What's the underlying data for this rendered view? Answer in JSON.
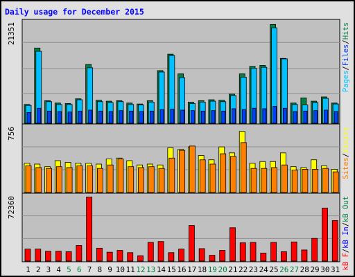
{
  "title": "Daily usage for December 2015",
  "colors": {
    "frame_bg": "#e0e0e0",
    "plot_bg": "#c0c0c0",
    "title": "#0000ff",
    "hits": "#008040",
    "files": "#00c0ff",
    "pages": "#0040ff",
    "visits": "#ffff00",
    "sites": "#ff8000",
    "kb_f": "#ff0000",
    "kb_in": "#0000ff",
    "kb_out": "#008040",
    "weekend_tick": "#008040",
    "weekday_tick": "#000000",
    "grid": "#909090"
  },
  "chart_data": [
    {
      "type": "bar",
      "panel": "hits-files-pages",
      "y_max_label": "21351",
      "ylim": [
        0,
        21351
      ],
      "legend": [
        {
          "text": "Pages",
          "color": "#00c0ff"
        },
        {
          "text": "/",
          "color": "#000000"
        },
        {
          "text": "Files",
          "color": "#0040ff"
        },
        {
          "text": "/",
          "color": "#000000"
        },
        {
          "text": "Hits",
          "color": "#008040"
        }
      ],
      "series": [
        {
          "name": "Hits",
          "values": [
            4000,
            16000,
            4800,
            4300,
            4200,
            5200,
            12500,
            4900,
            4700,
            4800,
            4300,
            4100,
            4800,
            11200,
            14700,
            10500,
            4500,
            4800,
            5000,
            4900,
            6200,
            10500,
            12100,
            12300,
            21000,
            13800,
            4300,
            5400,
            4700,
            5600,
            4300
          ]
        },
        {
          "name": "Files",
          "values": [
            3800,
            15300,
            4600,
            4000,
            4000,
            5000,
            11800,
            4600,
            4400,
            4600,
            4000,
            3900,
            4500,
            10900,
            14400,
            9700,
            4200,
            4500,
            4700,
            4600,
            5900,
            9800,
            11700,
            11900,
            20300,
            13700,
            4000,
            3900,
            4400,
            5300,
            4100
          ]
        },
        {
          "name": "Pages",
          "values": [
            2300,
            3200,
            2600,
            2500,
            2400,
            2600,
            2800,
            2600,
            2500,
            2700,
            2600,
            2500,
            2600,
            2900,
            3000,
            2800,
            2700,
            2600,
            2700,
            2600,
            3100,
            2900,
            3200,
            3100,
            3600,
            3200,
            2500,
            2600,
            2700,
            2800,
            2500
          ]
        }
      ]
    },
    {
      "type": "bar",
      "panel": "visits-sites",
      "y_max_label": "756",
      "ylim": [
        0,
        756
      ],
      "legend": [
        {
          "text": "Sites",
          "color": "#ff8000"
        },
        {
          "text": "/",
          "color": "#000000"
        },
        {
          "text": "Visits",
          "color": "#ffff00"
        }
      ],
      "series": [
        {
          "name": "Visits",
          "values": [
            340,
            330,
            300,
            370,
            350,
            340,
            340,
            330,
            390,
            400,
            370,
            320,
            330,
            320,
            520,
            500,
            530,
            430,
            380,
            530,
            460,
            710,
            340,
            360,
            360,
            460,
            300,
            290,
            380,
            310,
            270
          ]
        },
        {
          "name": "Sites",
          "values": [
            310,
            290,
            280,
            300,
            290,
            310,
            310,
            280,
            320,
            390,
            300,
            290,
            300,
            280,
            400,
            490,
            540,
            380,
            330,
            450,
            420,
            580,
            280,
            280,
            290,
            320,
            260,
            270,
            270,
            280,
            240
          ]
        }
      ]
    },
    {
      "type": "bar",
      "panel": "kbytes",
      "y_max_label": "72360",
      "ylim": [
        0,
        72360
      ],
      "legend": [
        {
          "text": "kB F",
          "color": "#ff0000"
        },
        {
          "text": "/",
          "color": "#000000"
        },
        {
          "text": "kB In",
          "color": "#0000ff"
        },
        {
          "text": "/",
          "color": "#000000"
        },
        {
          "text": "kB Out",
          "color": "#008040"
        }
      ],
      "series": [
        {
          "name": "kB F",
          "values": [
            13500,
            13500,
            11000,
            11000,
            10500,
            17500,
            72000,
            14500,
            10000,
            12000,
            9500,
            6000,
            21000,
            22000,
            9500,
            13500,
            40000,
            14000,
            6500,
            12000,
            37500,
            20500,
            21000,
            9000,
            21000,
            10500,
            21500,
            12500,
            25500,
            59500,
            45500
          ]
        }
      ]
    }
  ],
  "x_labels": [
    "1",
    "2",
    "3",
    "4",
    "5",
    "6",
    "7",
    "8",
    "9",
    "10",
    "11",
    "12",
    "13",
    "14",
    "15",
    "16",
    "17",
    "18",
    "19",
    "20",
    "21",
    "22",
    "23",
    "24",
    "25",
    "26",
    "27",
    "28",
    "29",
    "30",
    "31"
  ],
  "weekend_days": [
    5,
    6,
    12,
    13,
    19,
    20,
    26,
    27
  ]
}
